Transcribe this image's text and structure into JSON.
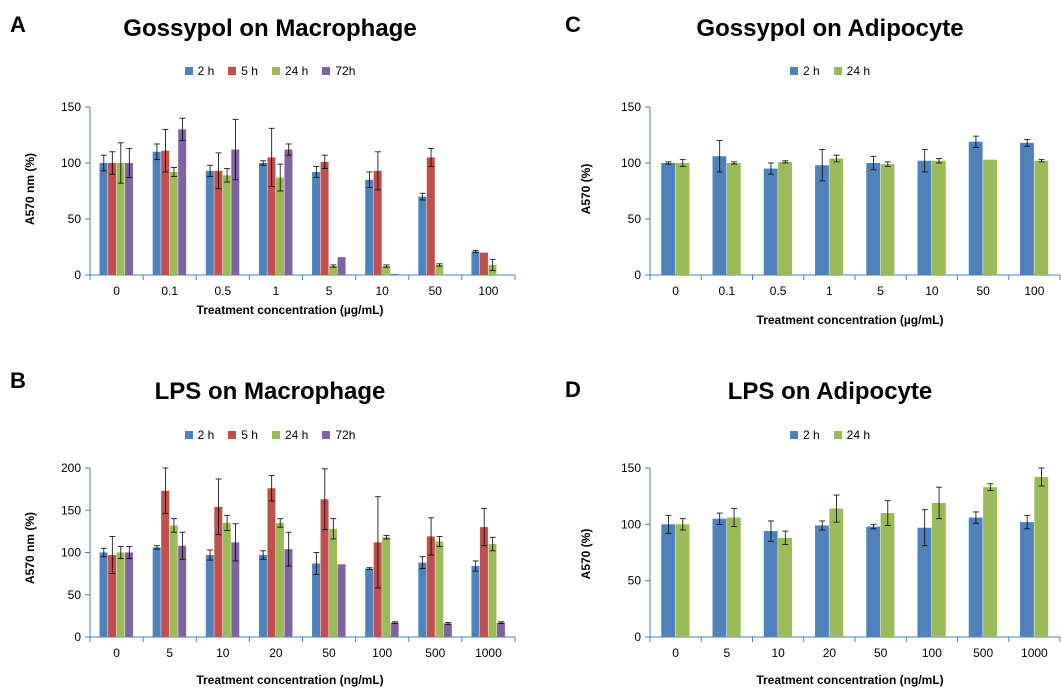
{
  "colors": {
    "2 h": "#4f81bd",
    "5 h": "#c0504d",
    "24 h": "#9bbb59",
    "72h": "#8064a2"
  },
  "chart_data": [
    {
      "panel": "A",
      "type": "bar",
      "title": "Gossypol on Macrophage",
      "xlabel": "Treatment concentration (µg/mL)",
      "ylabel": "A570 nm (%)",
      "ylim": [
        0,
        150
      ],
      "yticks": [
        0,
        50,
        100,
        150
      ],
      "categories": [
        "0",
        "0.1",
        "0.5",
        "1",
        "5",
        "10",
        "50",
        "100"
      ],
      "legend_position": "top",
      "series": [
        {
          "name": "2 h",
          "values": [
            100,
            110,
            93,
            100,
            92,
            85,
            70,
            21
          ],
          "errors": [
            7,
            7,
            5,
            2,
            5,
            7,
            3,
            1
          ]
        },
        {
          "name": "5 h",
          "values": [
            100,
            111,
            93,
            105,
            101,
            93,
            105,
            20
          ],
          "errors": [
            10,
            19,
            16,
            26,
            6,
            17,
            8,
            0
          ]
        },
        {
          "name": "24 h",
          "values": [
            100,
            92,
            89,
            87,
            8,
            8,
            9,
            9
          ],
          "errors": [
            18,
            4,
            6,
            12,
            1,
            1,
            1,
            5
          ]
        },
        {
          "name": "72h",
          "values": [
            100,
            130,
            112,
            112,
            16,
            1,
            0,
            0
          ],
          "errors": [
            13,
            10,
            27,
            5,
            0,
            0,
            0,
            0
          ]
        }
      ]
    },
    {
      "panel": "B",
      "type": "bar",
      "title": "LPS on Macrophage",
      "xlabel": "Treatment concentration (ng/mL)",
      "ylabel": "A570 nm (%)",
      "ylim": [
        0,
        200
      ],
      "yticks": [
        0,
        50,
        100,
        150,
        200
      ],
      "categories": [
        "0",
        "5",
        "10",
        "20",
        "50",
        "100",
        "500",
        "1000"
      ],
      "legend_position": "top",
      "series": [
        {
          "name": "2 h",
          "values": [
            100,
            106,
            97,
            97,
            87,
            81,
            88,
            84
          ],
          "errors": [
            5,
            2,
            6,
            5,
            13,
            1,
            7,
            6
          ]
        },
        {
          "name": "5 h",
          "values": [
            97,
            173,
            154,
            176,
            163,
            112,
            119,
            130
          ],
          "errors": [
            22,
            27,
            33,
            15,
            36,
            54,
            22,
            22
          ]
        },
        {
          "name": "24 h",
          "values": [
            100,
            132,
            135,
            135,
            128,
            118,
            113,
            110
          ],
          "errors": [
            7,
            8,
            9,
            5,
            12,
            2,
            6,
            8
          ]
        },
        {
          "name": "72h",
          "values": [
            100,
            108,
            112,
            104,
            86,
            17,
            16,
            17
          ],
          "errors": [
            7,
            16,
            22,
            20,
            0,
            1,
            1,
            1
          ]
        }
      ]
    },
    {
      "panel": "C",
      "type": "bar",
      "title": "Gossypol on Adipocyte",
      "xlabel": "Treatment concentration (µg/mL)",
      "ylabel": "A570 (%)",
      "ylim": [
        0,
        150
      ],
      "yticks": [
        0,
        50,
        100,
        150
      ],
      "categories": [
        "0",
        "0.1",
        "0.5",
        "1",
        "5",
        "10",
        "50",
        "100"
      ],
      "legend_position": "top",
      "series": [
        {
          "name": "2 h",
          "values": [
            100,
            106,
            95,
            98,
            100,
            102,
            119,
            118
          ],
          "errors": [
            1,
            14,
            5,
            14,
            6,
            10,
            5,
            3
          ]
        },
        {
          "name": "24 h",
          "values": [
            100,
            100,
            101,
            104,
            99,
            102,
            103,
            102
          ],
          "errors": [
            3,
            1,
            1,
            3,
            2,
            2,
            0,
            1
          ]
        }
      ]
    },
    {
      "panel": "D",
      "type": "bar",
      "title": "LPS on Adipocyte",
      "xlabel": "Treatment concentration (ng/mL)",
      "ylabel": "A570 (%)",
      "ylim": [
        0,
        150
      ],
      "yticks": [
        0,
        50,
        100,
        150
      ],
      "categories": [
        "0",
        "5",
        "10",
        "20",
        "50",
        "100",
        "500",
        "1000"
      ],
      "legend_position": "top",
      "series": [
        {
          "name": "2 h",
          "values": [
            100,
            105,
            94,
            99,
            98,
            97,
            106,
            102
          ],
          "errors": [
            8,
            5,
            9,
            4,
            2,
            16,
            5,
            6
          ]
        },
        {
          "name": "24 h",
          "values": [
            100,
            106,
            88,
            114,
            110,
            119,
            133,
            142
          ],
          "errors": [
            5,
            8,
            6,
            12,
            11,
            14,
            3,
            8
          ]
        }
      ]
    }
  ]
}
